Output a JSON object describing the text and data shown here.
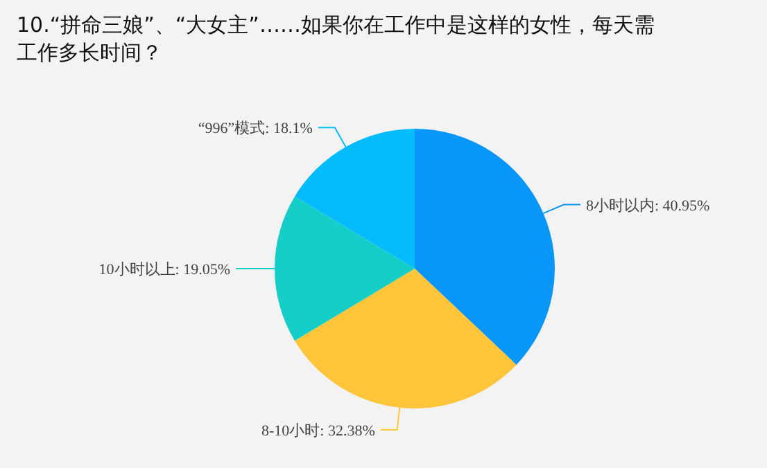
{
  "chart_data": {
    "type": "pie",
    "title": "10.“拼命三娘”、“大女主”……如果你在工作中是这样的女性，每天需工作多长时间？",
    "categories": [
      "8小时以内",
      "8-10小时",
      "10小时以上",
      "“996”模式"
    ],
    "values": [
      40.95,
      32.38,
      19.05,
      18.1
    ],
    "value_labels": [
      ": 40.95%",
      ": 32.38%",
      ": 19.05%",
      ": 18.1%"
    ],
    "colors": [
      "#0996f9",
      "#fec43a",
      "#15cec8",
      "#04bbfc"
    ]
  }
}
